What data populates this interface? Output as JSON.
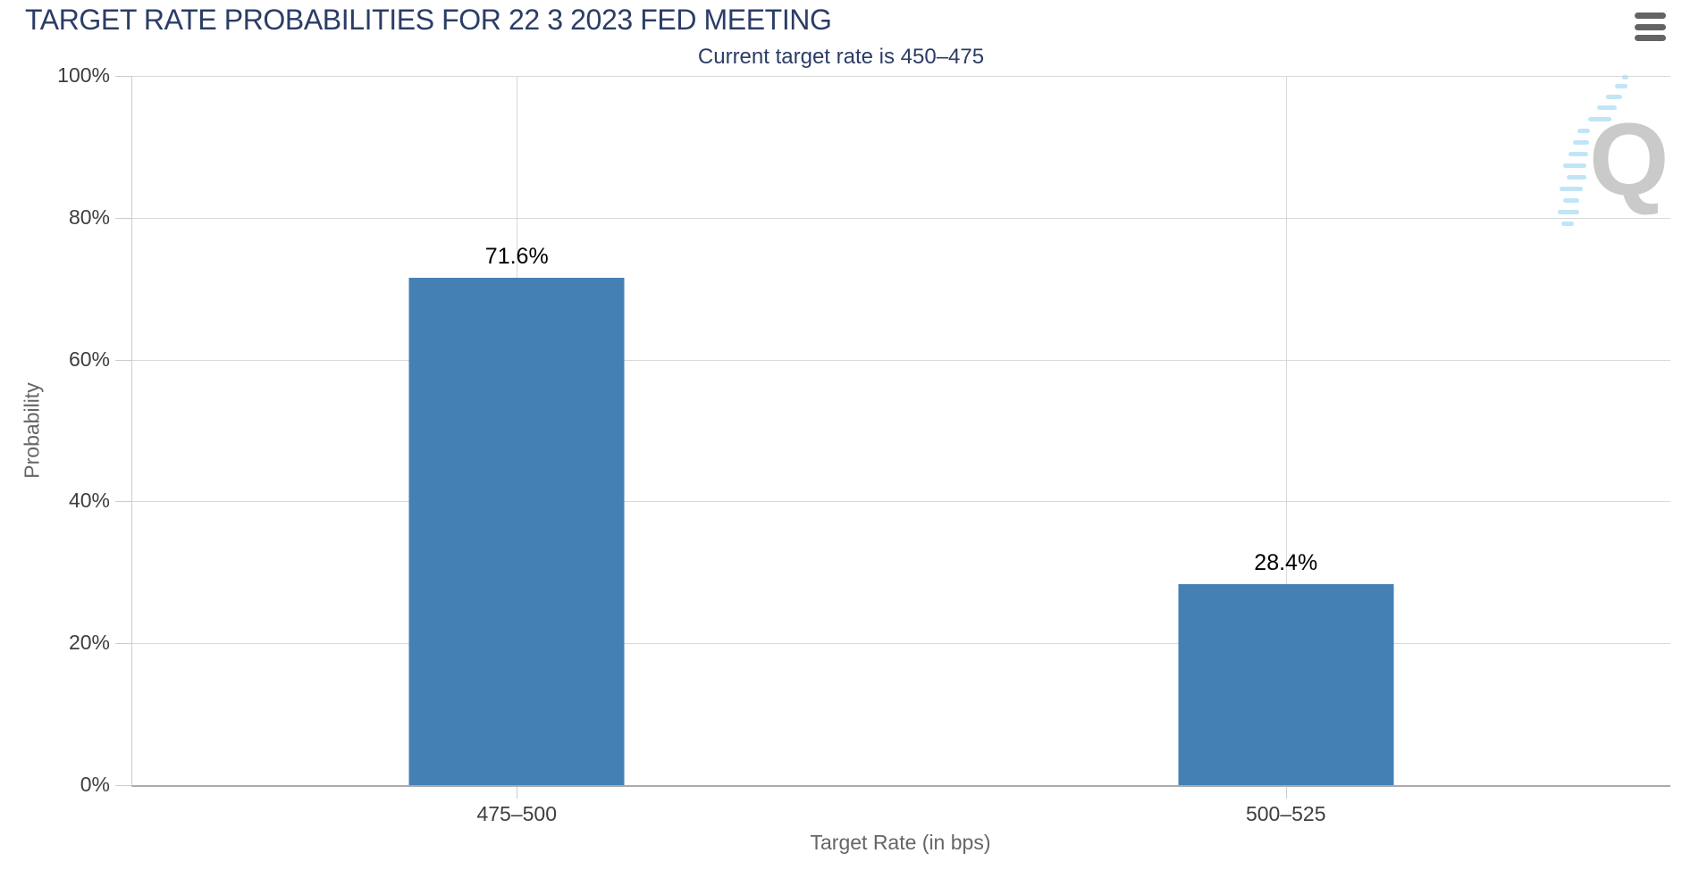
{
  "chart_data": {
    "type": "bar",
    "title": "TARGET RATE PROBABILITIES FOR 22 3 2023 FED MEETING",
    "subtitle": "Current target rate is 450–475",
    "categories": [
      "475–500",
      "500–525"
    ],
    "values": [
      71.6,
      28.4
    ],
    "value_labels": [
      "71.6%",
      "28.4%"
    ],
    "xlabel": "Target Rate (in bps)",
    "ylabel": "Probability",
    "ylim": [
      0,
      100
    ],
    "yticks": [
      0,
      20,
      40,
      60,
      80,
      100
    ],
    "ytick_labels": [
      "0%",
      "20%",
      "40%",
      "60%",
      "80%",
      "100%"
    ],
    "grid": true,
    "legend": "none",
    "bar_color": "#4580B5"
  },
  "watermark": {
    "letter": "Q"
  },
  "menu": {
    "icon": "hamburger-menu-icon"
  },
  "colors": {
    "accent_bar": "#4580B5",
    "title_navy": "#2B3D66",
    "tick_label": "#3E3E3E",
    "axis_title_gray": "#666666",
    "gridline": "#D9D9D9",
    "y_axis_line": "#CCCCCC",
    "x_axis_line": "#ABABAB",
    "value_label": "#000000",
    "watermark_gray": "#CACACA",
    "watermark_blue": "#B5E0F6",
    "menu_icon_gray": "#646464"
  }
}
